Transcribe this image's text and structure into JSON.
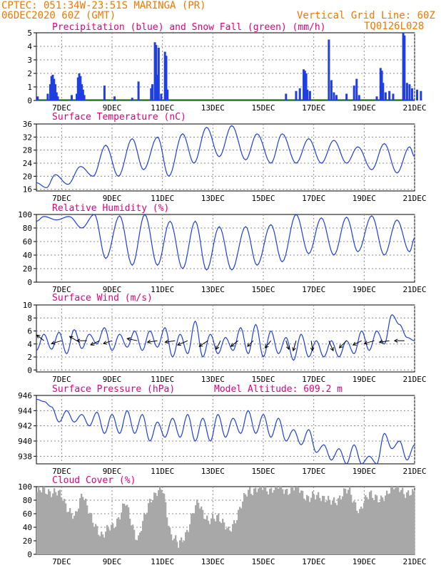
{
  "header": {
    "line1": "CPTEC:   051:34W-23:51S  MARINGA (PR)",
    "line2": "06DEC2020 60Z (GMT)",
    "grid_note": "Vertical Grid Line: 60Z",
    "code": "TQ0126L028"
  },
  "colors": {
    "header": "#f07800",
    "title": "#e0007a",
    "series": "#1f3fe0",
    "cloud": "#a8a8a8",
    "grid": "#888888"
  },
  "x_axis": {
    "ticks": [
      "7DEC",
      "9DEC",
      "11DEC",
      "13DEC",
      "15DEC",
      "17DEC",
      "19DEC",
      "21DEC"
    ]
  },
  "chart_data": [
    {
      "type": "bar",
      "title": "Precipitation (blue) and Snow Fall (green) (mm/h)",
      "ylim": [
        0,
        5
      ],
      "yticks": [
        "0",
        "1",
        "2",
        "3",
        "4",
        "5"
      ],
      "precip_events": [
        {
          "day": 6.05,
          "v": 0.3
        },
        {
          "day": 6.45,
          "v": 0.5
        },
        {
          "day": 6.55,
          "v": 1.2
        },
        {
          "day": 6.6,
          "v": 1.8
        },
        {
          "day": 6.65,
          "v": 1.9
        },
        {
          "day": 6.7,
          "v": 1.6
        },
        {
          "day": 6.75,
          "v": 1.2
        },
        {
          "day": 6.8,
          "v": 0.6
        },
        {
          "day": 6.85,
          "v": 0.3
        },
        {
          "day": 7.4,
          "v": 0.4
        },
        {
          "day": 7.6,
          "v": 0.5
        },
        {
          "day": 7.65,
          "v": 1.7
        },
        {
          "day": 7.7,
          "v": 2.0
        },
        {
          "day": 7.75,
          "v": 1.8
        },
        {
          "day": 7.8,
          "v": 1.2
        },
        {
          "day": 7.85,
          "v": 0.8
        },
        {
          "day": 7.9,
          "v": 0.4
        },
        {
          "day": 8.7,
          "v": 1.1
        },
        {
          "day": 9.1,
          "v": 0.3
        },
        {
          "day": 9.8,
          "v": 0.2
        },
        {
          "day": 10.05,
          "v": 1.4
        },
        {
          "day": 10.55,
          "v": 0.9
        },
        {
          "day": 10.6,
          "v": 1.2
        },
        {
          "day": 10.7,
          "v": 4.3
        },
        {
          "day": 10.75,
          "v": 4.1
        },
        {
          "day": 10.8,
          "v": 1.9
        },
        {
          "day": 10.85,
          "v": 3.9
        },
        {
          "day": 10.95,
          "v": 0.5
        },
        {
          "day": 11.1,
          "v": 3.6
        },
        {
          "day": 11.15,
          "v": 3.3
        },
        {
          "day": 11.2,
          "v": 0.8
        },
        {
          "day": 15.9,
          "v": 0.5
        },
        {
          "day": 16.3,
          "v": 0.7
        },
        {
          "day": 16.45,
          "v": 0.9
        },
        {
          "day": 16.6,
          "v": 2.3
        },
        {
          "day": 16.65,
          "v": 2.2
        },
        {
          "day": 16.7,
          "v": 2.0
        },
        {
          "day": 16.75,
          "v": 0.8
        },
        {
          "day": 16.85,
          "v": 0.7
        },
        {
          "day": 17.6,
          "v": 4.5
        },
        {
          "day": 17.7,
          "v": 1.5
        },
        {
          "day": 17.8,
          "v": 0.6
        },
        {
          "day": 17.9,
          "v": 0.4
        },
        {
          "day": 18.3,
          "v": 0.5
        },
        {
          "day": 18.6,
          "v": 1.1
        },
        {
          "day": 18.7,
          "v": 1.6
        },
        {
          "day": 18.8,
          "v": 0.4
        },
        {
          "day": 19.5,
          "v": 0.3
        },
        {
          "day": 19.65,
          "v": 2.4
        },
        {
          "day": 19.7,
          "v": 2.2
        },
        {
          "day": 19.75,
          "v": 1.3
        },
        {
          "day": 19.85,
          "v": 0.6
        },
        {
          "day": 20.0,
          "v": 0.7
        },
        {
          "day": 20.15,
          "v": 0.5
        },
        {
          "day": 20.55,
          "v": 5.0
        },
        {
          "day": 20.6,
          "v": 4.8
        },
        {
          "day": 20.7,
          "v": 1.3
        },
        {
          "day": 20.8,
          "v": 1.2
        },
        {
          "day": 20.9,
          "v": 0.9
        },
        {
          "day": 21.1,
          "v": 0.8
        },
        {
          "day": 21.25,
          "v": 0.7
        }
      ]
    },
    {
      "type": "line",
      "title": "Surface Temperature (nC)",
      "ylim": [
        15.5,
        36
      ],
      "yticks": [
        "16",
        "20",
        "24",
        "28",
        "32",
        "36"
      ],
      "daily": [
        [
          0.0,
          18.0
        ],
        [
          0.4,
          16.5
        ],
        [
          0.75,
          20.5
        ],
        [
          1.25,
          17.5
        ],
        [
          1.75,
          23.0
        ],
        [
          2.25,
          20.0
        ],
        [
          2.75,
          29.5
        ],
        [
          3.25,
          20.0
        ],
        [
          3.8,
          31.5
        ],
        [
          4.25,
          22.0
        ],
        [
          4.8,
          32.0
        ],
        [
          5.25,
          20.0
        ],
        [
          5.8,
          33.0
        ],
        [
          6.25,
          24.0
        ],
        [
          6.75,
          35.0
        ],
        [
          7.25,
          26.0
        ],
        [
          7.75,
          35.5
        ],
        [
          8.3,
          25.0
        ],
        [
          8.75,
          33.0
        ],
        [
          9.3,
          24.0
        ],
        [
          9.75,
          33.0
        ],
        [
          10.3,
          24.0
        ],
        [
          10.8,
          31.5
        ],
        [
          11.3,
          24.0
        ],
        [
          11.8,
          31.0
        ],
        [
          12.3,
          24.0
        ],
        [
          12.75,
          29.0
        ],
        [
          13.3,
          22.0
        ],
        [
          13.8,
          30.0
        ],
        [
          14.3,
          21.0
        ],
        [
          14.8,
          29.0
        ],
        [
          15.0,
          26.0
        ]
      ]
    },
    {
      "type": "line",
      "title": "Relative Humidity (%)",
      "ylim": [
        0,
        100
      ],
      "yticks": [
        "0",
        "20",
        "40",
        "60",
        "80",
        "100"
      ],
      "daily": [
        [
          0.0,
          90
        ],
        [
          0.3,
          97
        ],
        [
          0.8,
          92
        ],
        [
          1.3,
          97
        ],
        [
          1.8,
          80
        ],
        [
          2.3,
          100
        ],
        [
          2.75,
          35
        ],
        [
          3.3,
          98
        ],
        [
          3.8,
          25
        ],
        [
          4.3,
          100
        ],
        [
          4.8,
          25
        ],
        [
          5.3,
          90
        ],
        [
          5.8,
          20
        ],
        [
          6.3,
          90
        ],
        [
          6.75,
          18
        ],
        [
          7.25,
          82
        ],
        [
          7.75,
          18
        ],
        [
          8.3,
          82
        ],
        [
          8.75,
          25
        ],
        [
          9.3,
          85
        ],
        [
          9.75,
          30
        ],
        [
          10.3,
          100
        ],
        [
          10.8,
          42
        ],
        [
          11.3,
          95
        ],
        [
          11.8,
          40
        ],
        [
          12.3,
          96
        ],
        [
          12.75,
          45
        ],
        [
          13.3,
          98
        ],
        [
          13.8,
          40
        ],
        [
          14.3,
          92
        ],
        [
          14.8,
          45
        ],
        [
          15.0,
          65
        ]
      ]
    },
    {
      "type": "line",
      "title": "Surface Wind (m/s)",
      "ylim": [
        -0.3,
        10
      ],
      "yticks": [
        "0",
        "2",
        "4",
        "6",
        "8",
        "10"
      ],
      "daily": [
        [
          0.0,
          3.0
        ],
        [
          0.3,
          5.5
        ],
        [
          0.6,
          3.2
        ],
        [
          0.9,
          5.8
        ],
        [
          1.2,
          2.5
        ],
        [
          1.5,
          6.2
        ],
        [
          1.8,
          3.3
        ],
        [
          2.1,
          5.5
        ],
        [
          2.4,
          4.0
        ],
        [
          2.7,
          6.5
        ],
        [
          3.0,
          3.0
        ],
        [
          3.3,
          5.5
        ],
        [
          3.6,
          3.5
        ],
        [
          3.9,
          6.0
        ],
        [
          4.2,
          3.0
        ],
        [
          4.5,
          6.0
        ],
        [
          4.8,
          3.5
        ],
        [
          5.1,
          6.5
        ],
        [
          5.4,
          2.0
        ],
        [
          5.7,
          5.5
        ],
        [
          6.0,
          2.5
        ],
        [
          6.3,
          7.5
        ],
        [
          6.6,
          2.0
        ],
        [
          6.9,
          5.5
        ],
        [
          7.2,
          2.5
        ],
        [
          7.5,
          5.0
        ],
        [
          7.8,
          3.0
        ],
        [
          8.1,
          6.5
        ],
        [
          8.4,
          2.5
        ],
        [
          8.7,
          7.0
        ],
        [
          9.0,
          2.0
        ],
        [
          9.3,
          6.0
        ],
        [
          9.6,
          2.5
        ],
        [
          9.9,
          5.0
        ],
        [
          10.2,
          1.5
        ],
        [
          10.5,
          5.5
        ],
        [
          10.8,
          2.0
        ],
        [
          11.1,
          4.5
        ],
        [
          11.4,
          2.0
        ],
        [
          11.7,
          4.5
        ],
        [
          12.0,
          2.0
        ],
        [
          12.3,
          4.5
        ],
        [
          12.6,
          2.5
        ],
        [
          12.9,
          6.0
        ],
        [
          13.2,
          3.0
        ],
        [
          13.5,
          6.0
        ],
        [
          13.8,
          4.0
        ],
        [
          14.1,
          8.5
        ],
        [
          14.4,
          7.0
        ],
        [
          14.7,
          5.0
        ],
        [
          15.0,
          4.5
        ]
      ],
      "arrows": [
        {
          "day": 0.3,
          "dx": -10,
          "dy": -8
        },
        {
          "day": 1.0,
          "dx": -14,
          "dy": 4
        },
        {
          "day": 1.6,
          "dx": -10,
          "dy": -6
        },
        {
          "day": 2.0,
          "dx": -14,
          "dy": 0
        },
        {
          "day": 2.5,
          "dx": -12,
          "dy": 6
        },
        {
          "day": 3.0,
          "dx": -12,
          "dy": 4
        },
        {
          "day": 4.0,
          "dx": -14,
          "dy": -3
        },
        {
          "day": 4.8,
          "dx": -14,
          "dy": 2
        },
        {
          "day": 5.5,
          "dx": -14,
          "dy": 2
        },
        {
          "day": 6.0,
          "dx": -14,
          "dy": 6
        },
        {
          "day": 6.8,
          "dx": -12,
          "dy": 8
        },
        {
          "day": 7.3,
          "dx": -6,
          "dy": 12
        },
        {
          "day": 8.0,
          "dx": -10,
          "dy": 8
        },
        {
          "day": 8.6,
          "dx": -8,
          "dy": 8
        },
        {
          "day": 9.3,
          "dx": -8,
          "dy": 10
        },
        {
          "day": 9.9,
          "dx": 4,
          "dy": 12
        },
        {
          "day": 10.3,
          "dx": -4,
          "dy": 14
        },
        {
          "day": 10.9,
          "dx": 2,
          "dy": 14
        },
        {
          "day": 11.6,
          "dx": 6,
          "dy": 14
        },
        {
          "day": 12.3,
          "dx": -10,
          "dy": 10
        },
        {
          "day": 12.9,
          "dx": -12,
          "dy": 6
        },
        {
          "day": 13.4,
          "dx": -14,
          "dy": 4
        },
        {
          "day": 14.0,
          "dx": -14,
          "dy": 2
        },
        {
          "day": 14.6,
          "dx": -14,
          "dy": 0
        }
      ]
    },
    {
      "type": "line",
      "title": "Surface Pressure (hPa)",
      "subtitle": "Model Altitude: 609.2 m",
      "ylim": [
        937,
        946
      ],
      "yticks": [
        "938",
        "940",
        "942",
        "944",
        "946"
      ],
      "daily": [
        [
          0.0,
          945.5
        ],
        [
          0.3,
          945.2
        ],
        [
          0.6,
          944.5
        ],
        [
          0.9,
          942.5
        ],
        [
          1.2,
          944.0
        ],
        [
          1.5,
          942.5
        ],
        [
          1.8,
          943.5
        ],
        [
          2.1,
          942.0
        ],
        [
          2.4,
          943.8
        ],
        [
          2.7,
          941.0
        ],
        [
          3.0,
          943.5
        ],
        [
          3.3,
          941.0
        ],
        [
          3.6,
          944.0
        ],
        [
          3.9,
          941.0
        ],
        [
          4.2,
          943.5
        ],
        [
          4.5,
          940.0
        ],
        [
          4.8,
          942.5
        ],
        [
          5.1,
          940.5
        ],
        [
          5.4,
          943.0
        ],
        [
          5.7,
          940.5
        ],
        [
          6.0,
          943.5
        ],
        [
          6.3,
          940.0
        ],
        [
          6.6,
          943.0
        ],
        [
          6.9,
          940.0
        ],
        [
          7.2,
          943.5
        ],
        [
          7.5,
          940.5
        ],
        [
          7.8,
          943.0
        ],
        [
          8.1,
          941.0
        ],
        [
          8.4,
          944.0
        ],
        [
          8.7,
          941.0
        ],
        [
          9.0,
          943.5
        ],
        [
          9.3,
          940.5
        ],
        [
          9.6,
          943.0
        ],
        [
          9.9,
          940.0
        ],
        [
          10.2,
          941.5
        ],
        [
          10.5,
          939.5
        ],
        [
          10.8,
          941.5
        ],
        [
          11.1,
          938.5
        ],
        [
          11.4,
          939.5
        ],
        [
          11.7,
          937.5
        ],
        [
          12.0,
          939.0
        ],
        [
          12.3,
          937.0
        ],
        [
          12.6,
          939.5
        ],
        [
          12.9,
          937.0
        ],
        [
          13.2,
          938.0
        ],
        [
          13.5,
          937.0
        ],
        [
          13.8,
          941.0
        ],
        [
          14.1,
          939.0
        ],
        [
          14.4,
          940.0
        ],
        [
          14.7,
          937.5
        ],
        [
          15.0,
          939.5
        ]
      ]
    },
    {
      "type": "bar",
      "title": "Cloud Cover (%)",
      "ylim": [
        0,
        100
      ],
      "yticks": [
        "0",
        "20",
        "40",
        "60",
        "80",
        "100"
      ],
      "profile": [
        [
          0.0,
          92
        ],
        [
          0.5,
          95
        ],
        [
          1.0,
          85
        ],
        [
          1.5,
          50
        ],
        [
          1.8,
          95
        ],
        [
          2.2,
          45
        ],
        [
          2.6,
          30
        ],
        [
          3.0,
          40
        ],
        [
          3.5,
          75
        ],
        [
          4.0,
          20
        ],
        [
          4.5,
          85
        ],
        [
          5.0,
          95
        ],
        [
          5.3,
          30
        ],
        [
          5.6,
          12
        ],
        [
          6.0,
          40
        ],
        [
          6.4,
          80
        ],
        [
          6.8,
          45
        ],
        [
          7.2,
          60
        ],
        [
          7.6,
          30
        ],
        [
          8.0,
          65
        ],
        [
          8.4,
          95
        ],
        [
          8.8,
          98
        ],
        [
          9.2,
          97
        ],
        [
          9.6,
          99
        ],
        [
          10.0,
          95
        ],
        [
          10.4,
          98
        ],
        [
          10.8,
          80
        ],
        [
          11.2,
          90
        ],
        [
          11.6,
          75
        ],
        [
          12.0,
          85
        ],
        [
          12.4,
          95
        ],
        [
          12.8,
          60
        ],
        [
          13.2,
          95
        ],
        [
          13.6,
          75
        ],
        [
          14.0,
          100
        ],
        [
          14.4,
          96
        ],
        [
          14.8,
          90
        ],
        [
          15.0,
          85
        ]
      ]
    }
  ]
}
